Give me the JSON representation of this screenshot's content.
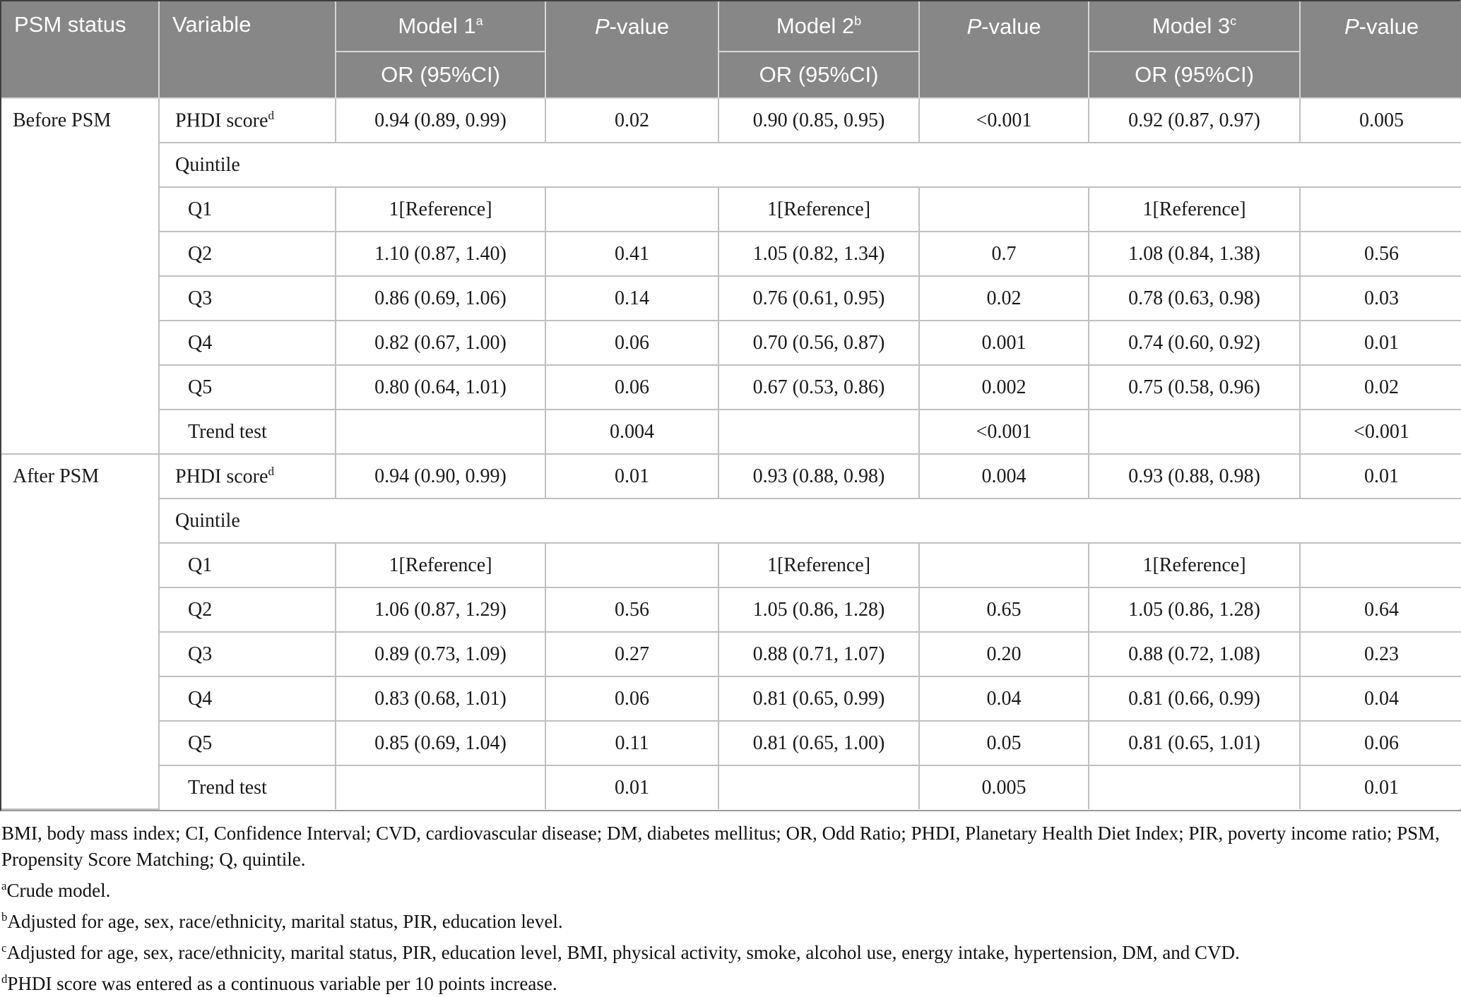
{
  "table": {
    "header": {
      "psm_status": "PSM status",
      "variable": "Variable",
      "p_label_italic": "P",
      "p_label_rest": "-value",
      "models": [
        {
          "name": "Model 1",
          "sup": "a",
          "subheader": "OR (95%CI)"
        },
        {
          "name": "Model 2",
          "sup": "b",
          "subheader": "OR (95%CI)"
        },
        {
          "name": "Model 3",
          "sup": "c",
          "subheader": "OR (95%CI)"
        }
      ]
    },
    "sections": [
      {
        "psm_status": "Before PSM",
        "rows": [
          {
            "type": "variable",
            "label": "PHDI score",
            "sup": "d",
            "cells": [
              "0.94 (0.89, 0.99)",
              "0.02",
              "0.90 (0.85, 0.95)",
              "<0.001",
              "0.92 (0.87, 0.97)",
              "0.005"
            ]
          },
          {
            "type": "group",
            "label": "Quintile"
          },
          {
            "type": "quintile",
            "label": "Q1",
            "cells": [
              "1[Reference]",
              "",
              "1[Reference]",
              "",
              "1[Reference]",
              ""
            ]
          },
          {
            "type": "quintile",
            "label": "Q2",
            "cells": [
              "1.10 (0.87, 1.40)",
              "0.41",
              "1.05 (0.82, 1.34)",
              "0.7",
              "1.08 (0.84, 1.38)",
              "0.56"
            ]
          },
          {
            "type": "quintile",
            "label": "Q3",
            "cells": [
              "0.86 (0.69, 1.06)",
              "0.14",
              "0.76 (0.61, 0.95)",
              "0.02",
              "0.78 (0.63, 0.98)",
              "0.03"
            ]
          },
          {
            "type": "quintile",
            "label": "Q4",
            "cells": [
              "0.82 (0.67, 1.00)",
              "0.06",
              "0.70 (0.56, 0.87)",
              "0.001",
              "0.74 (0.60, 0.92)",
              "0.01"
            ]
          },
          {
            "type": "quintile",
            "label": "Q5",
            "cells": [
              "0.80 (0.64, 1.01)",
              "0.06",
              "0.67 (0.53, 0.86)",
              "0.002",
              "0.75 (0.58, 0.96)",
              "0.02"
            ]
          },
          {
            "type": "quintile",
            "label": "Trend test",
            "cells": [
              "",
              "0.004",
              "",
              "<0.001",
              "",
              "<0.001"
            ]
          }
        ]
      },
      {
        "psm_status": "After PSM",
        "rows": [
          {
            "type": "variable",
            "label": "PHDI score",
            "sup": "d",
            "cells": [
              "0.94 (0.90, 0.99)",
              "0.01",
              "0.93 (0.88, 0.98)",
              "0.004",
              "0.93 (0.88, 0.98)",
              "0.01"
            ]
          },
          {
            "type": "group",
            "label": "Quintile"
          },
          {
            "type": "quintile",
            "label": "Q1",
            "cells": [
              "1[Reference]",
              "",
              "1[Reference]",
              "",
              "1[Reference]",
              ""
            ]
          },
          {
            "type": "quintile",
            "label": "Q2",
            "cells": [
              "1.06 (0.87, 1.29)",
              "0.56",
              "1.05 (0.86, 1.28)",
              "0.65",
              "1.05 (0.86, 1.28)",
              "0.64"
            ]
          },
          {
            "type": "quintile",
            "label": "Q3",
            "cells": [
              "0.89 (0.73, 1.09)",
              "0.27",
              "0.88 (0.71, 1.07)",
              "0.20",
              "0.88 (0.72, 1.08)",
              "0.23"
            ]
          },
          {
            "type": "quintile",
            "label": "Q4",
            "cells": [
              "0.83 (0.68, 1.01)",
              "0.06",
              "0.81 (0.65, 0.99)",
              "0.04",
              "0.81 (0.66, 0.99)",
              "0.04"
            ]
          },
          {
            "type": "quintile",
            "label": "Q5",
            "cells": [
              "0.85 (0.69, 1.04)",
              "0.11",
              "0.81 (0.65, 1.00)",
              "0.05",
              "0.81 (0.65, 1.01)",
              "0.06"
            ]
          },
          {
            "type": "quintile",
            "label": "Trend test",
            "cells": [
              "",
              "0.01",
              "",
              "0.005",
              "",
              "0.01"
            ]
          }
        ]
      }
    ]
  },
  "footnotes": {
    "abbreviations": "BMI, body mass index; CI, Confidence Interval; CVD, cardiovascular disease; DM, diabetes mellitus; OR, Odd Ratio; PHDI, Planetary Health Diet Index; PIR, poverty income ratio; PSM, Propensity Score Matching; Q, quintile.",
    "notes": [
      {
        "sup": "a",
        "text": "Crude model."
      },
      {
        "sup": "b",
        "text": "Adjusted for age, sex, race/ethnicity, marital status, PIR, education level."
      },
      {
        "sup": "c",
        "text": "Adjusted for age, sex, race/ethnicity, marital status, PIR, education level, BMI, physical activity, smoke, alcohol use, energy intake, hypertension, DM, and CVD."
      },
      {
        "sup": "d",
        "text": "PHDI score was entered as a continuous variable per 10 points increase."
      }
    ]
  },
  "colors": {
    "header_bg": "#878787",
    "header_text": "#ffffff",
    "body_text": "#1a1a1a",
    "grid_line": "#c0c0c0",
    "outer_border_dark": "#3f3f3f"
  }
}
